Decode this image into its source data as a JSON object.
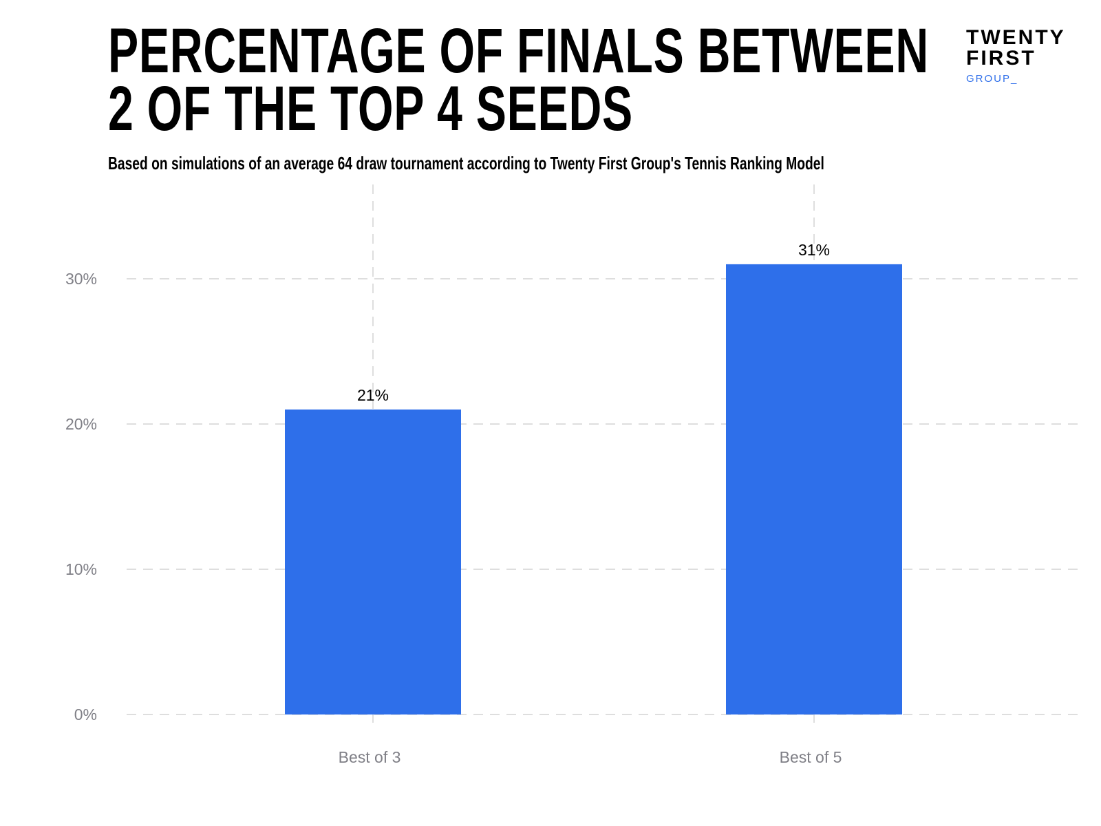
{
  "title_line1": "PERCENTAGE OF FINALS BETWEEN",
  "title_line2": "2 OF THE TOP 4 SEEDS",
  "subtitle": "Based on simulations of an average 64 draw tournament according to Twenty First Group's Tennis Ranking Model",
  "logo": {
    "line1": "TWENTY",
    "line2": "FIRST",
    "line3": "GROUP_"
  },
  "colors": {
    "bar": "#2e6fea",
    "grid": "#dedede",
    "tick": "#7f7f86"
  },
  "chart_data": {
    "type": "bar",
    "title": "PERCENTAGE OF FINALS BETWEEN 2 OF THE TOP 4 SEEDS",
    "categories": [
      "Best of 3",
      "Best of 5"
    ],
    "values": [
      21,
      31
    ],
    "data_labels": [
      "21%",
      "31%"
    ],
    "xlabel": "",
    "ylabel": "",
    "ylim": [
      0,
      35
    ],
    "yticks": [
      0,
      10,
      20,
      30
    ],
    "ytick_labels": [
      "0%",
      "10%",
      "20%",
      "30%"
    ],
    "grid": true
  }
}
